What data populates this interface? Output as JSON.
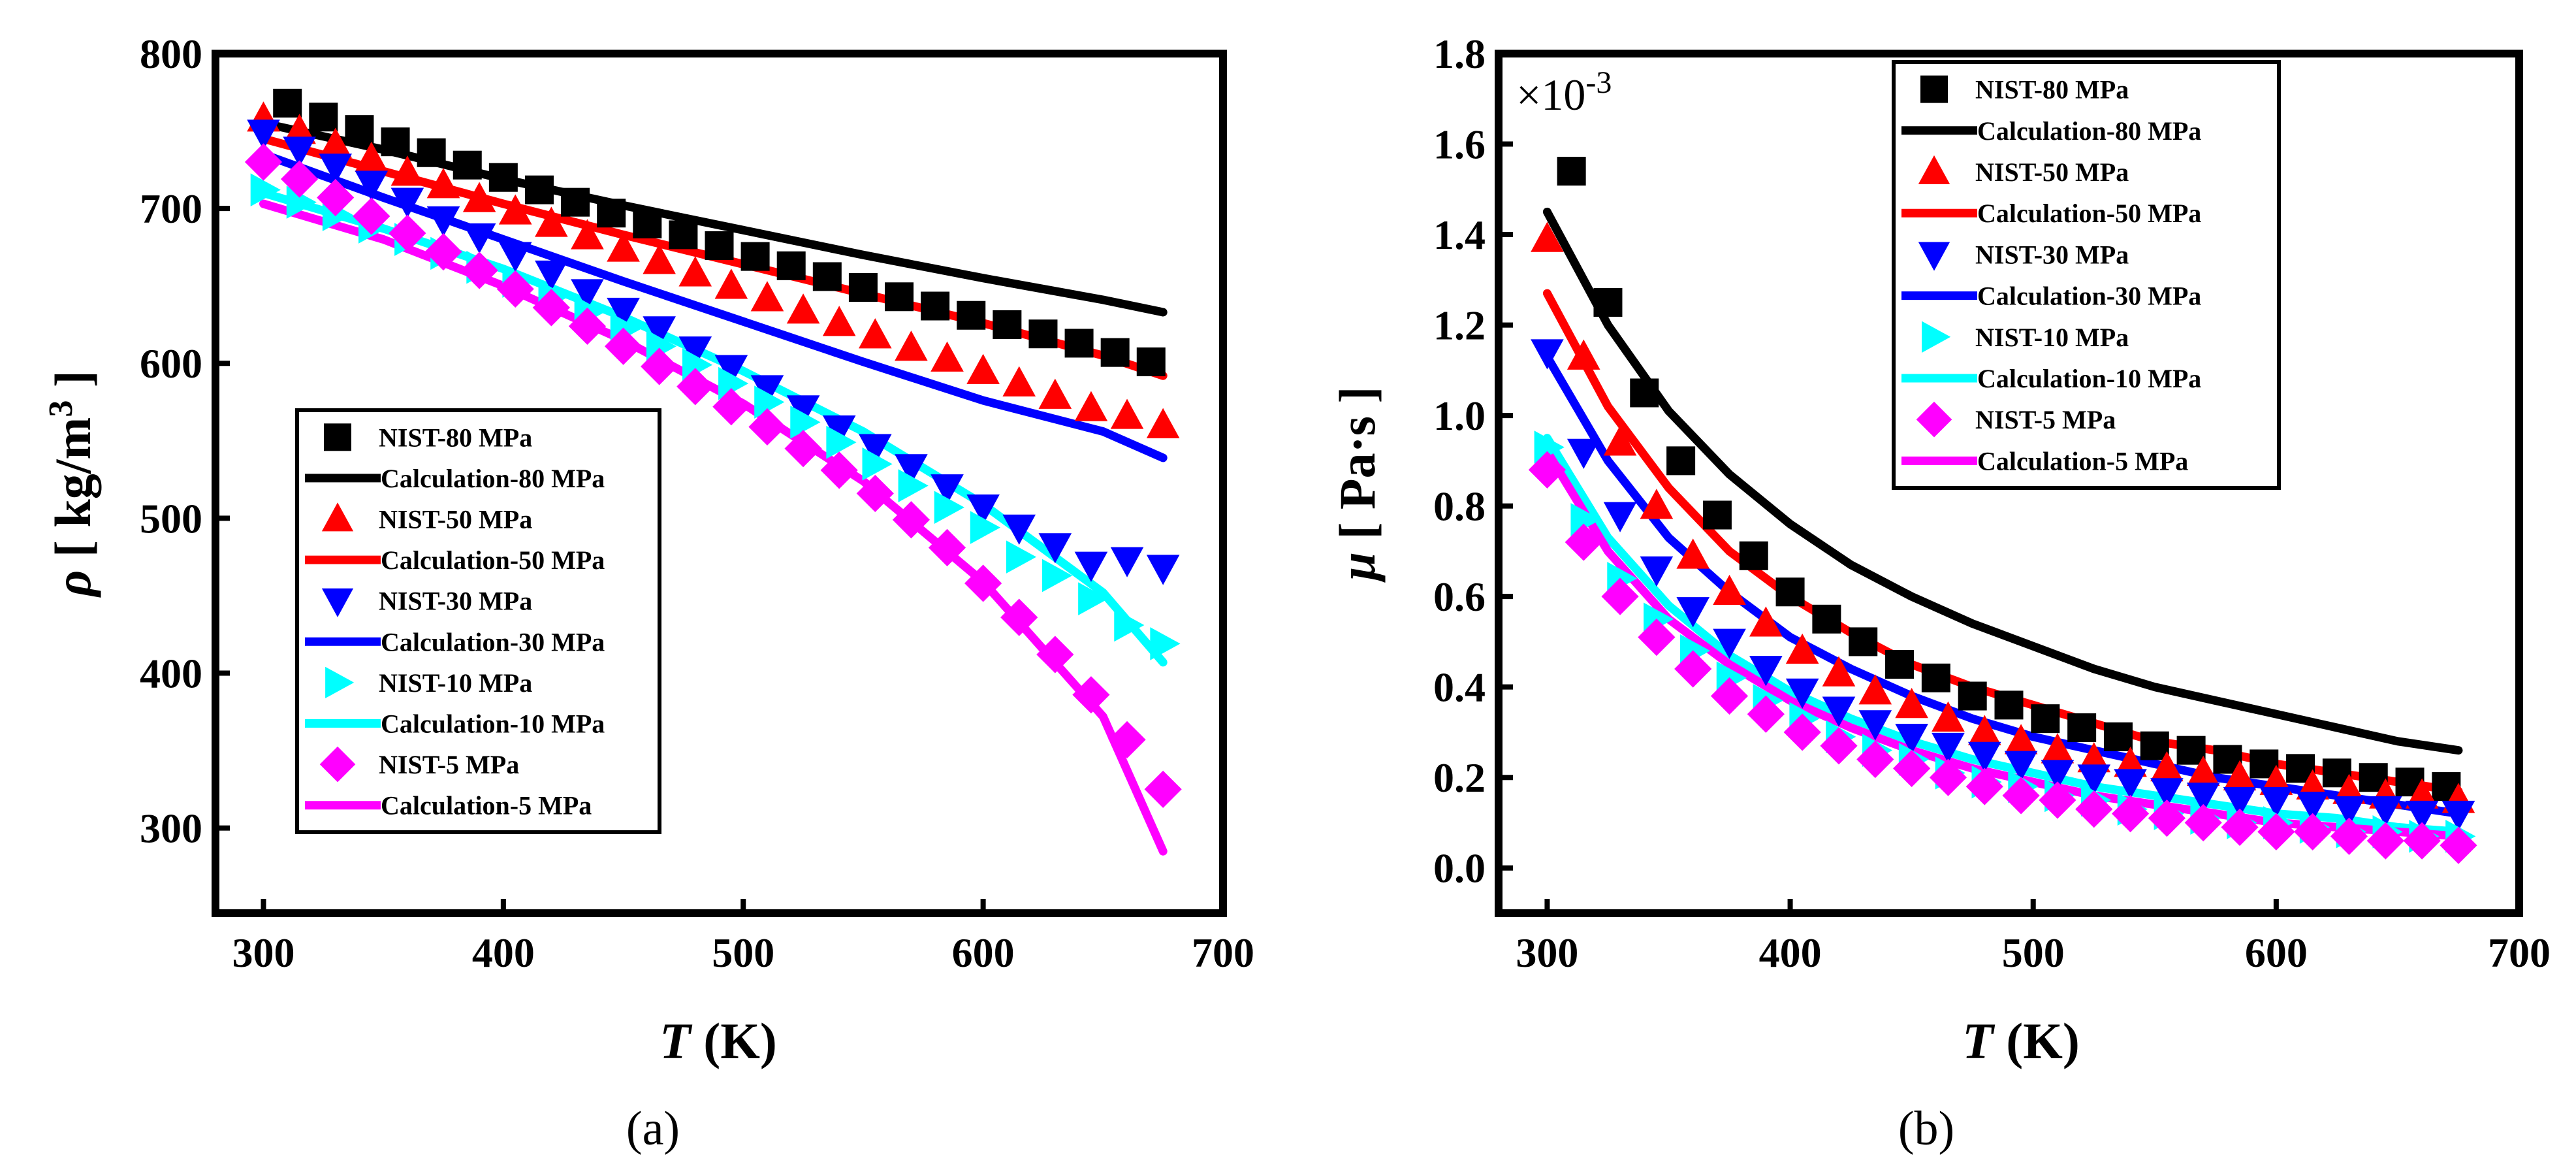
{
  "figure": {
    "panels": [
      "(a)",
      "(b)"
    ]
  },
  "chart_data": [
    {
      "type": "scatter",
      "panel_label": "(a)",
      "xlabel_italic": "T",
      "xlabel_rest": " (K)",
      "ylabel_symbol": "ρ",
      "ylabel_unit": " [ kg/m",
      "ylabel_sup": "3",
      "ylabel_close": " ]",
      "xlim": [
        280,
        700
      ],
      "ylim": [
        245,
        800
      ],
      "xticks": [
        300,
        400,
        500,
        600,
        700
      ],
      "yticks": [
        300,
        400,
        500,
        600,
        700,
        800
      ],
      "ytick_labels": [
        "300",
        "400",
        "500",
        "600",
        "700",
        "800"
      ],
      "legend_position": "lower-left",
      "series": [
        {
          "name": "NIST-80 MPa",
          "kind": "marker",
          "marker": "square",
          "color": "#000000",
          "x": [
            310,
            325,
            340,
            355,
            370,
            385,
            400,
            415,
            430,
            445,
            460,
            475,
            490,
            505,
            520,
            535,
            550,
            565,
            580,
            595,
            610,
            625,
            640,
            655,
            670
          ],
          "y": [
            768,
            759,
            751,
            743,
            736,
            728,
            720,
            712,
            704,
            697,
            690,
            683,
            676,
            669,
            663,
            656,
            649,
            643,
            637,
            631,
            625,
            619,
            613,
            607,
            601
          ]
        },
        {
          "name": "Calculation-80 MPa",
          "kind": "line",
          "color": "#000000",
          "x": [
            300,
            350,
            400,
            450,
            500,
            550,
            600,
            650,
            675
          ],
          "y": [
            755,
            738,
            719,
            702,
            686,
            670,
            655,
            641,
            633
          ]
        },
        {
          "name": "NIST-50 MPa",
          "kind": "marker",
          "marker": "triangle-up",
          "color": "#ff0000",
          "x": [
            300,
            315,
            330,
            345,
            360,
            375,
            390,
            405,
            420,
            435,
            450,
            465,
            480,
            495,
            510,
            525,
            540,
            555,
            570,
            585,
            600,
            615,
            630,
            645,
            660,
            675
          ],
          "y": [
            758,
            750,
            741,
            732,
            723,
            715,
            706,
            698,
            690,
            682,
            674,
            666,
            658,
            650,
            642,
            634,
            626,
            618,
            610,
            603,
            595,
            587,
            579,
            571,
            566,
            560
          ]
        },
        {
          "name": "Calculation-50 MPa",
          "kind": "line",
          "color": "#ff0000",
          "x": [
            300,
            350,
            400,
            450,
            500,
            550,
            600,
            650,
            675
          ],
          "y": [
            745,
            724,
            703,
            683,
            664,
            645,
            626,
            605,
            592
          ]
        },
        {
          "name": "NIST-30 MPa",
          "kind": "marker",
          "marker": "triangle-down",
          "color": "#0000ff",
          "x": [
            300,
            315,
            330,
            345,
            360,
            375,
            390,
            405,
            420,
            435,
            450,
            465,
            480,
            495,
            510,
            525,
            540,
            555,
            570,
            585,
            600,
            615,
            630,
            645,
            660,
            675
          ],
          "y": [
            749,
            738,
            727,
            716,
            705,
            693,
            682,
            670,
            658,
            646,
            634,
            622,
            609,
            597,
            584,
            571,
            558,
            546,
            533,
            520,
            507,
            494,
            482,
            470,
            473,
            468
          ]
        },
        {
          "name": "Calculation-30 MPa",
          "kind": "line",
          "color": "#0000ff",
          "x": [
            300,
            350,
            400,
            450,
            500,
            550,
            600,
            650,
            675
          ],
          "y": [
            735,
            707,
            680,
            653,
            627,
            601,
            576,
            556,
            539
          ]
        },
        {
          "name": "NIST-10 MPa",
          "kind": "marker",
          "marker": "triangle-right",
          "color": "#00ffff",
          "x": [
            300,
            315,
            330,
            345,
            360,
            375,
            390,
            405,
            420,
            435,
            450,
            465,
            480,
            495,
            510,
            525,
            540,
            555,
            570,
            585,
            600,
            615,
            630,
            645,
            660,
            675
          ],
          "y": [
            712,
            704,
            696,
            688,
            680,
            671,
            662,
            653,
            643,
            633,
            622,
            611,
            599,
            587,
            575,
            562,
            549,
            535,
            521,
            507,
            494,
            475,
            463,
            448,
            431,
            419
          ]
        },
        {
          "name": "Calculation-10 MPa",
          "kind": "line",
          "color": "#00ffff",
          "x": [
            300,
            350,
            400,
            450,
            500,
            550,
            600,
            650,
            675
          ],
          "y": [
            710,
            687,
            661,
            630,
            595,
            556,
            509,
            452,
            407
          ]
        },
        {
          "name": "NIST-5 MPa",
          "kind": "marker",
          "marker": "diamond",
          "color": "#ff00ff",
          "x": [
            300,
            315,
            330,
            345,
            360,
            375,
            390,
            405,
            420,
            435,
            450,
            465,
            480,
            495,
            510,
            525,
            540,
            555,
            570,
            585,
            600,
            615,
            630,
            645,
            660,
            675
          ],
          "y": [
            730,
            719,
            707,
            695,
            684,
            672,
            660,
            648,
            636,
            624,
            611,
            598,
            585,
            572,
            559,
            545,
            531,
            516,
            499,
            481,
            458,
            436,
            412,
            386,
            357,
            325
          ]
        },
        {
          "name": "Calculation-5 MPa",
          "kind": "line",
          "color": "#ff00ff",
          "x": [
            300,
            350,
            400,
            450,
            500,
            550,
            600,
            650,
            675
          ],
          "y": [
            703,
            680,
            650,
            615,
            574,
            524,
            459,
            372,
            285
          ]
        }
      ]
    },
    {
      "type": "scatter",
      "panel_label": "(b)",
      "xlabel_italic": "T",
      "xlabel_rest": " (K)",
      "ylabel_symbol": "μ",
      "ylabel_unit": " [ Pa·s ]",
      "scale_base": "×10",
      "scale_exp": "-3",
      "xlim": [
        280,
        700
      ],
      "ylim": [
        -0.1,
        1.8
      ],
      "xticks": [
        300,
        400,
        500,
        600,
        700
      ],
      "yticks": [
        0.0,
        0.2,
        0.4,
        0.6,
        0.8,
        1.0,
        1.2,
        1.4,
        1.6,
        1.8
      ],
      "ytick_labels": [
        "0.0",
        "0.2",
        "0.4",
        "0.6",
        "0.8",
        "1.0",
        "1.2",
        "1.4",
        "1.6",
        "1.8"
      ],
      "legend_position": "top-right",
      "series": [
        {
          "name": "NIST-80 MPa",
          "kind": "marker",
          "marker": "square",
          "color": "#000000",
          "x": [
            310,
            325,
            340,
            355,
            370,
            385,
            400,
            415,
            430,
            445,
            460,
            475,
            490,
            505,
            520,
            535,
            550,
            565,
            580,
            595,
            610,
            625,
            640,
            655,
            670
          ],
          "y": [
            1.54,
            1.25,
            1.05,
            0.9,
            0.78,
            0.69,
            0.61,
            0.55,
            0.5,
            0.45,
            0.42,
            0.38,
            0.36,
            0.33,
            0.31,
            0.29,
            0.27,
            0.26,
            0.24,
            0.23,
            0.22,
            0.21,
            0.2,
            0.19,
            0.18
          ]
        },
        {
          "name": "Calculation-80 MPa",
          "kind": "line",
          "color": "#000000",
          "x": [
            300,
            325,
            350,
            375,
            400,
            425,
            450,
            475,
            500,
            525,
            550,
            575,
            600,
            625,
            650,
            675
          ],
          "y": [
            1.45,
            1.2,
            1.01,
            0.87,
            0.76,
            0.67,
            0.6,
            0.54,
            0.49,
            0.44,
            0.4,
            0.37,
            0.34,
            0.31,
            0.28,
            0.26
          ]
        },
        {
          "name": "NIST-50 MPa",
          "kind": "marker",
          "marker": "triangle-up",
          "color": "#ff0000",
          "x": [
            300,
            315,
            330,
            345,
            360,
            375,
            390,
            405,
            420,
            435,
            450,
            465,
            480,
            495,
            510,
            525,
            540,
            555,
            570,
            585,
            600,
            615,
            630,
            645,
            660,
            675
          ],
          "y": [
            1.39,
            1.13,
            0.94,
            0.8,
            0.69,
            0.61,
            0.54,
            0.48,
            0.43,
            0.39,
            0.36,
            0.33,
            0.3,
            0.28,
            0.26,
            0.24,
            0.23,
            0.22,
            0.21,
            0.2,
            0.19,
            0.18,
            0.17,
            0.16,
            0.16,
            0.15
          ]
        },
        {
          "name": "Calculation-50 MPa",
          "kind": "line",
          "color": "#ff0000",
          "x": [
            300,
            325,
            350,
            375,
            400,
            425,
            450,
            475,
            500,
            525,
            550,
            575,
            600,
            625,
            650,
            675
          ],
          "y": [
            1.27,
            1.02,
            0.84,
            0.7,
            0.6,
            0.52,
            0.45,
            0.4,
            0.36,
            0.32,
            0.28,
            0.26,
            0.23,
            0.21,
            0.19,
            0.17
          ]
        },
        {
          "name": "NIST-30 MPa",
          "kind": "marker",
          "marker": "triangle-down",
          "color": "#0000ff",
          "x": [
            300,
            315,
            330,
            345,
            360,
            375,
            390,
            405,
            420,
            435,
            450,
            465,
            480,
            495,
            510,
            525,
            540,
            555,
            570,
            585,
            600,
            615,
            630,
            645,
            660,
            675
          ],
          "y": [
            1.14,
            0.92,
            0.78,
            0.66,
            0.57,
            0.5,
            0.44,
            0.39,
            0.35,
            0.32,
            0.29,
            0.27,
            0.25,
            0.23,
            0.21,
            0.2,
            0.19,
            0.17,
            0.16,
            0.15,
            0.15,
            0.14,
            0.13,
            0.13,
            0.12,
            0.12
          ]
        },
        {
          "name": "Calculation-30 MPa",
          "kind": "line",
          "color": "#0000ff",
          "x": [
            300,
            325,
            350,
            375,
            400,
            425,
            450,
            475,
            500,
            525,
            550,
            575,
            600,
            625,
            650,
            675
          ],
          "y": [
            1.13,
            0.9,
            0.73,
            0.61,
            0.51,
            0.44,
            0.38,
            0.33,
            0.29,
            0.26,
            0.23,
            0.2,
            0.18,
            0.16,
            0.14,
            0.12
          ]
        },
        {
          "name": "NIST-10 MPa",
          "kind": "marker",
          "marker": "triangle-right",
          "color": "#00ffff",
          "x": [
            300,
            315,
            330,
            345,
            360,
            375,
            390,
            405,
            420,
            435,
            450,
            465,
            480,
            495,
            510,
            525,
            540,
            555,
            570,
            585,
            600,
            615,
            630,
            645,
            660,
            675
          ],
          "y": [
            0.93,
            0.77,
            0.64,
            0.55,
            0.48,
            0.42,
            0.37,
            0.33,
            0.29,
            0.26,
            0.24,
            0.21,
            0.19,
            0.18,
            0.16,
            0.15,
            0.13,
            0.12,
            0.11,
            0.1,
            0.1,
            0.09,
            0.08,
            0.08,
            0.07,
            0.07
          ]
        },
        {
          "name": "Calculation-10 MPa",
          "kind": "line",
          "color": "#00ffff",
          "x": [
            300,
            325,
            350,
            375,
            400,
            425,
            450,
            475,
            500,
            525,
            550,
            575,
            600,
            625,
            650,
            675
          ],
          "y": [
            0.95,
            0.73,
            0.58,
            0.47,
            0.39,
            0.33,
            0.28,
            0.24,
            0.21,
            0.18,
            0.16,
            0.14,
            0.12,
            0.11,
            0.09,
            0.08
          ]
        },
        {
          "name": "NIST-5 MPa",
          "kind": "marker",
          "marker": "diamond",
          "color": "#ff00ff",
          "x": [
            300,
            315,
            330,
            345,
            360,
            375,
            390,
            405,
            420,
            435,
            450,
            465,
            480,
            495,
            510,
            525,
            540,
            555,
            570,
            585,
            600,
            615,
            630,
            645,
            660,
            675
          ],
          "y": [
            0.88,
            0.72,
            0.6,
            0.51,
            0.44,
            0.38,
            0.34,
            0.3,
            0.27,
            0.24,
            0.22,
            0.2,
            0.18,
            0.16,
            0.15,
            0.13,
            0.12,
            0.11,
            0.1,
            0.09,
            0.08,
            0.08,
            0.07,
            0.06,
            0.06,
            0.05
          ]
        },
        {
          "name": "Calculation-5 MPa",
          "kind": "line",
          "color": "#ff00ff",
          "x": [
            300,
            325,
            350,
            375,
            400,
            425,
            450,
            475,
            500,
            525,
            550,
            575,
            600,
            625,
            650,
            675
          ],
          "y": [
            0.92,
            0.7,
            0.55,
            0.45,
            0.37,
            0.31,
            0.26,
            0.22,
            0.19,
            0.16,
            0.14,
            0.12,
            0.1,
            0.09,
            0.08,
            0.07
          ]
        }
      ]
    }
  ]
}
